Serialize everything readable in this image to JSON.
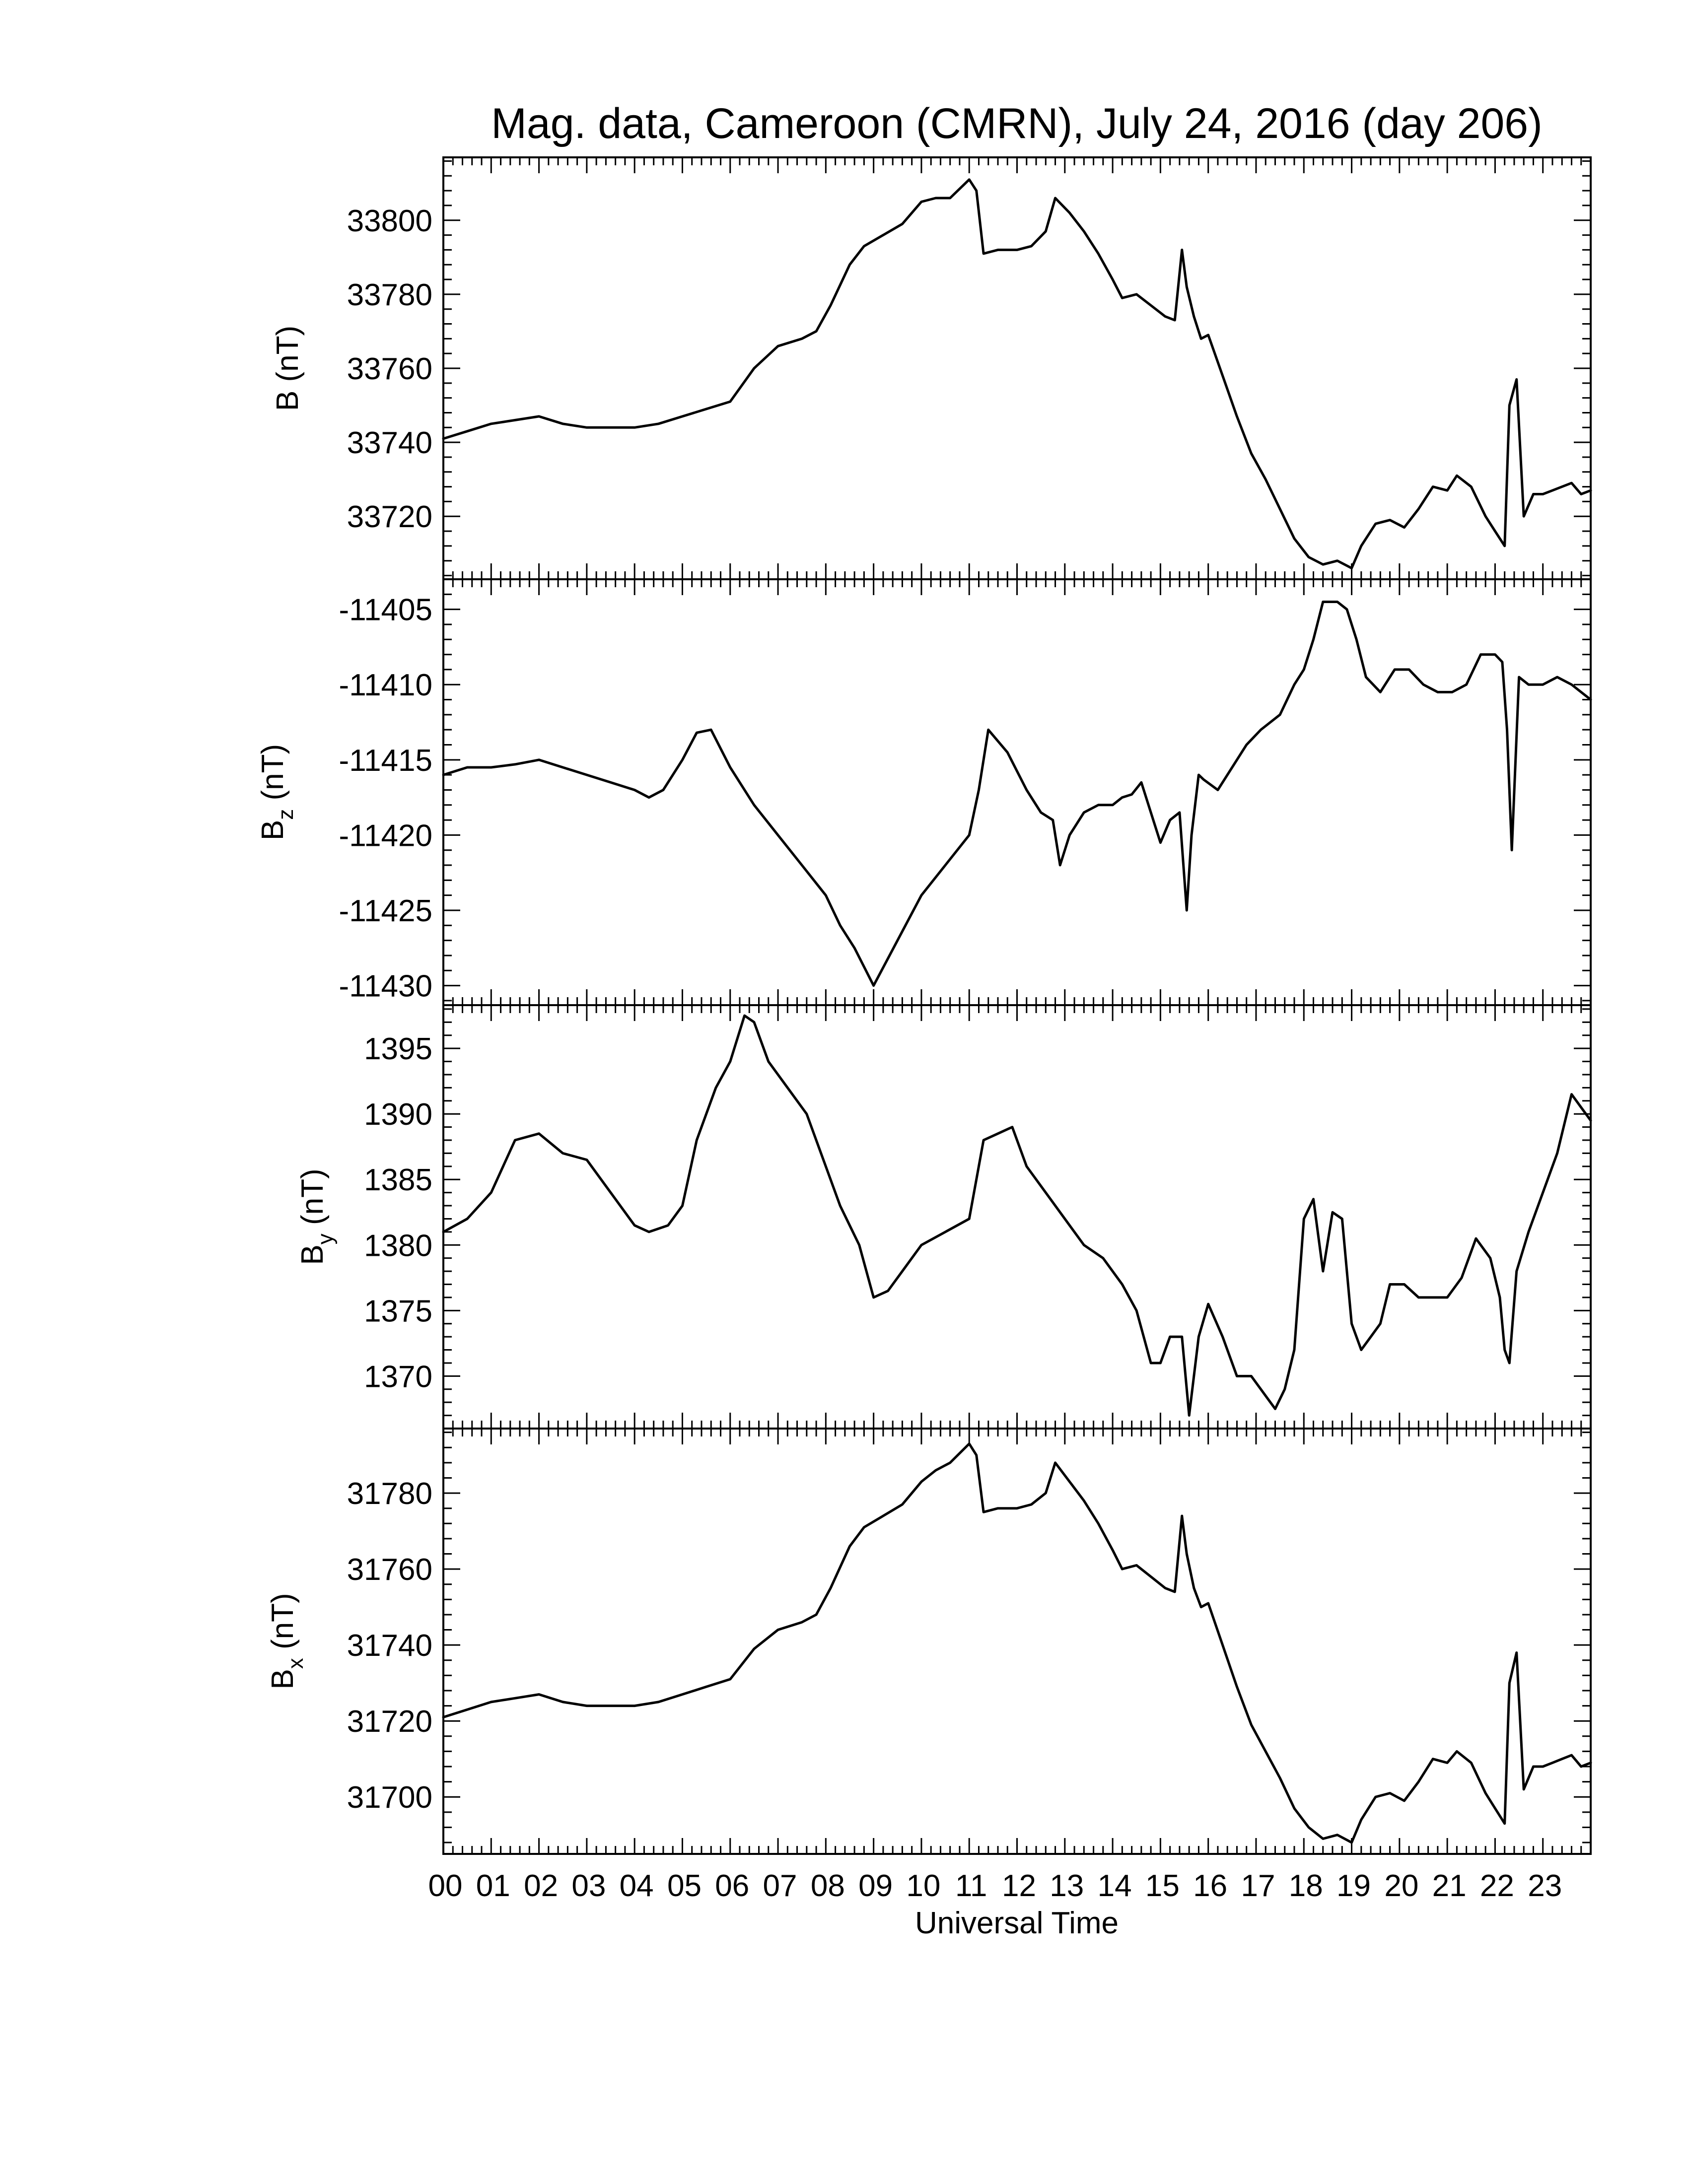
{
  "title": "Mag. data, Cameroon (CMRN), July 24, 2016 (day 206)",
  "x_axis": {
    "label": "Universal Time",
    "range_hours": [
      0,
      24
    ],
    "tick_labels": [
      "00",
      "01",
      "02",
      "03",
      "04",
      "05",
      "06",
      "07",
      "08",
      "09",
      "10",
      "11",
      "12",
      "13",
      "14",
      "15",
      "16",
      "17",
      "18",
      "19",
      "20",
      "21",
      "22",
      "23"
    ]
  },
  "chart_data": [
    {
      "type": "line",
      "panel": "B",
      "ylabel": "B (nT)",
      "ylabel_main": "B",
      "ylabel_sub": "",
      "ylabel_unit": " (nT)",
      "ylim": [
        33703,
        33817
      ],
      "yticks": [
        33720,
        33740,
        33760,
        33780,
        33800
      ],
      "x": [
        0,
        0.25,
        0.5,
        1,
        1.5,
        2,
        2.5,
        3,
        3.5,
        4,
        4.5,
        5,
        5.5,
        6,
        6.5,
        7,
        7.5,
        7.8,
        8.1,
        8.5,
        8.8,
        9.2,
        9.6,
        10,
        10.3,
        10.6,
        11,
        11.15,
        11.3,
        11.6,
        12,
        12.3,
        12.6,
        12.8,
        13.1,
        13.4,
        13.7,
        14,
        14.2,
        14.5,
        14.8,
        15.1,
        15.3,
        15.45,
        15.55,
        15.7,
        15.85,
        16,
        16.3,
        16.6,
        16.9,
        17.2,
        17.5,
        17.8,
        18.1,
        18.4,
        18.7,
        19.0,
        19.2,
        19.5,
        19.8,
        20.1,
        20.4,
        20.7,
        21.0,
        21.2,
        21.5,
        21.8,
        22.0,
        22.2,
        22.3,
        22.45,
        22.6,
        22.8,
        23.0,
        23.2,
        23.4,
        23.6,
        23.8,
        24
      ],
      "y": [
        33741,
        33742,
        33743,
        33745,
        33746,
        33747,
        33745,
        33744,
        33744,
        33744,
        33745,
        33747,
        33749,
        33751,
        33760,
        33766,
        33768,
        33770,
        33777,
        33788,
        33793,
        33796,
        33799,
        33805,
        33806,
        33806,
        33811,
        33808,
        33791,
        33792,
        33792,
        33793,
        33797,
        33806,
        33802,
        33797,
        33791,
        33784,
        33779,
        33780,
        33777,
        33774,
        33773,
        33792,
        33782,
        33774,
        33768,
        33769,
        33758,
        33747,
        33737,
        33730,
        33722,
        33714,
        33709,
        33707,
        33708,
        33706,
        33712,
        33718,
        33719,
        33717,
        33722,
        33728,
        33727,
        33731,
        33728,
        33720,
        33716,
        33712,
        33750,
        33757,
        33720,
        33726,
        33726,
        33727,
        33728,
        33729,
        33726,
        33727
      ]
    },
    {
      "type": "line",
      "panel": "Bz",
      "ylabel": "Bz (nT)",
      "ylabel_main": "B",
      "ylabel_sub": "z",
      "ylabel_unit": " (nT)",
      "ylim": [
        -11431.3,
        -11403.0
      ],
      "yticks": [
        -11430,
        -11425,
        -11420,
        -11415,
        -11410,
        -11405
      ],
      "x": [
        0,
        0.5,
        1,
        1.5,
        2,
        2.5,
        3,
        3.5,
        4,
        4.3,
        4.6,
        5,
        5.3,
        5.6,
        6,
        6.5,
        7,
        7.5,
        8,
        8.3,
        8.6,
        9,
        9.5,
        10,
        10.5,
        11,
        11.2,
        11.4,
        11.8,
        12.2,
        12.5,
        12.75,
        12.9,
        13.1,
        13.4,
        13.7,
        14,
        14.2,
        14.4,
        14.6,
        14.8,
        15.0,
        15.2,
        15.4,
        15.55,
        15.65,
        15.8,
        15.9,
        16.2,
        16.5,
        16.8,
        17.1,
        17.5,
        17.8,
        18.0,
        18.2,
        18.4,
        18.7,
        18.9,
        19.1,
        19.3,
        19.6,
        19.9,
        20.2,
        20.5,
        20.8,
        21.1,
        21.4,
        21.7,
        22.0,
        22.15,
        22.25,
        22.35,
        22.5,
        22.7,
        23.0,
        23.3,
        23.6,
        24
      ],
      "y": [
        -11416,
        -11415.5,
        -11415.5,
        -11415.3,
        -11415,
        -11415.5,
        -11416,
        -11416.5,
        -11417,
        -11417.5,
        -11417,
        -11415,
        -11413.2,
        -11413,
        -11415.5,
        -11418,
        -11420,
        -11422,
        -11424,
        -11426,
        -11427.5,
        -11430,
        -11427,
        -11424,
        -11422,
        -11420,
        -11417,
        -11413,
        -11414.5,
        -11417,
        -11418.5,
        -11419,
        -11422,
        -11420,
        -11418.5,
        -11418,
        -11418,
        -11417.5,
        -11417.3,
        -11416.5,
        -11418.5,
        -11420.5,
        -11419,
        -11418.5,
        -11425,
        -11420,
        -11416,
        -11416.3,
        -11417,
        -11415.5,
        -11414,
        -11413,
        -11412,
        -11410,
        -11409,
        -11407,
        -11404.5,
        -11404.5,
        -11405,
        -11407,
        -11409.5,
        -11410.5,
        -11409,
        -11409,
        -11410,
        -11410.5,
        -11410.5,
        -11410,
        -11408,
        -11408,
        -11408.5,
        -11413,
        -11421,
        -11409.5,
        -11410,
        -11410,
        -11409.5,
        -11410,
        -11411
      ]
    },
    {
      "type": "line",
      "panel": "By",
      "ylabel": "By (nT)",
      "ylabel_main": "B",
      "ylabel_sub": "y",
      "ylabel_unit": " (nT)",
      "ylim": [
        1366,
        1398.3
      ],
      "yticks": [
        1370,
        1375,
        1380,
        1385,
        1390,
        1395
      ],
      "x": [
        0,
        0.5,
        1,
        1.5,
        2,
        2.5,
        3,
        3.5,
        4,
        4.3,
        4.7,
        5,
        5.3,
        5.7,
        6,
        6.3,
        6.5,
        6.8,
        7.2,
        7.6,
        8,
        8.3,
        8.7,
        9,
        9.3,
        9.6,
        10,
        10.5,
        11,
        11.3,
        11.6,
        11.9,
        12.2,
        12.6,
        13,
        13.4,
        13.8,
        14.2,
        14.5,
        14.8,
        15.0,
        15.2,
        15.45,
        15.6,
        15.8,
        16.0,
        16.3,
        16.6,
        16.9,
        17.2,
        17.4,
        17.6,
        17.8,
        18.0,
        18.2,
        18.4,
        18.6,
        18.8,
        19.0,
        19.2,
        19.4,
        19.6,
        19.8,
        20.1,
        20.4,
        20.7,
        21.0,
        21.3,
        21.6,
        21.9,
        22.1,
        22.2,
        22.3,
        22.45,
        22.7,
        23.0,
        23.3,
        23.6,
        23.8,
        24
      ],
      "y": [
        1381,
        1382,
        1384,
        1388,
        1388.5,
        1387,
        1386.5,
        1384,
        1381.5,
        1381,
        1381.5,
        1383,
        1388,
        1392,
        1394,
        1397.5,
        1397,
        1394,
        1392,
        1390,
        1386,
        1383,
        1380,
        1376,
        1376.5,
        1378,
        1380,
        1381,
        1382,
        1388,
        1388.5,
        1389,
        1386,
        1384,
        1382,
        1380,
        1379,
        1377,
        1375,
        1371,
        1371,
        1373,
        1373,
        1367,
        1373,
        1375.5,
        1373,
        1370,
        1370,
        1368.5,
        1367.5,
        1369,
        1372,
        1382,
        1383.5,
        1378,
        1382.5,
        1382,
        1374,
        1372,
        1373,
        1374,
        1377,
        1377,
        1376,
        1376,
        1376,
        1377.5,
        1380.5,
        1379,
        1376,
        1372,
        1371,
        1378,
        1381,
        1384,
        1387,
        1391.5,
        1390.5,
        1389.5
      ]
    },
    {
      "type": "line",
      "panel": "Bx",
      "ylabel": "Bx (nT)",
      "ylabel_main": "B",
      "ylabel_sub": "x",
      "ylabel_unit": " (nT)",
      "ylim": [
        31685,
        31797
      ],
      "yticks": [
        31700,
        31720,
        31740,
        31760,
        31780
      ],
      "x": [
        0,
        0.25,
        0.5,
        1,
        1.5,
        2,
        2.5,
        3,
        3.5,
        4,
        4.5,
        5,
        5.5,
        6,
        6.5,
        7,
        7.5,
        7.8,
        8.1,
        8.5,
        8.8,
        9.2,
        9.6,
        10,
        10.3,
        10.6,
        11,
        11.15,
        11.3,
        11.6,
        12,
        12.3,
        12.6,
        12.8,
        13.1,
        13.4,
        13.7,
        14,
        14.2,
        14.5,
        14.8,
        15.1,
        15.3,
        15.45,
        15.55,
        15.7,
        15.85,
        16,
        16.3,
        16.6,
        16.9,
        17.2,
        17.5,
        17.8,
        18.1,
        18.4,
        18.7,
        19.0,
        19.2,
        19.5,
        19.8,
        20.1,
        20.4,
        20.7,
        21.0,
        21.2,
        21.5,
        21.8,
        22.0,
        22.2,
        22.3,
        22.45,
        22.6,
        22.8,
        23.0,
        23.2,
        23.4,
        23.6,
        23.8,
        24
      ],
      "y": [
        31721,
        31722,
        31723,
        31725,
        31726,
        31727,
        31725,
        31724,
        31724,
        31724,
        31725,
        31727,
        31729,
        31731,
        31739,
        31744,
        31746,
        31748,
        31755,
        31766,
        31771,
        31774,
        31777,
        31783,
        31786,
        31788,
        31793,
        31790,
        31775,
        31776,
        31776,
        31777,
        31780,
        31788,
        31783,
        31778,
        31772,
        31765,
        31760,
        31761,
        31758,
        31755,
        31754,
        31774,
        31764,
        31755,
        31750,
        31751,
        31740,
        31729,
        31719,
        31712,
        31705,
        31697,
        31692,
        31689,
        31690,
        31688,
        31694,
        31700,
        31701,
        31699,
        31704,
        31710,
        31709,
        31712,
        31709,
        31701,
        31697,
        31693,
        31730,
        31738,
        31702,
        31708,
        31708,
        31709,
        31710,
        31711,
        31708,
        31709
      ]
    }
  ]
}
